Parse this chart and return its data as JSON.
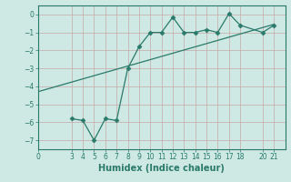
{
  "xlabel": "Humidex (Indice chaleur)",
  "ylabel": "",
  "background_color": "#cee8e4",
  "line_color": "#2a7a6a",
  "grid_color": "#c8a8a8",
  "xlim": [
    0,
    22
  ],
  "ylim": [
    -7.5,
    0.5
  ],
  "xticks": [
    0,
    3,
    4,
    5,
    6,
    7,
    8,
    9,
    10,
    11,
    12,
    13,
    14,
    15,
    16,
    17,
    18,
    20,
    21
  ],
  "yticks": [
    0,
    -1,
    -2,
    -3,
    -4,
    -5,
    -6,
    -7
  ],
  "curve1_x": [
    3,
    4,
    5,
    6,
    7,
    8,
    9,
    10,
    11,
    12,
    13,
    14,
    15,
    16,
    17,
    18,
    20,
    21
  ],
  "curve1_y": [
    -5.8,
    -5.9,
    -7.0,
    -5.8,
    -5.9,
    -3.0,
    -1.8,
    -1.0,
    -1.0,
    -0.15,
    -1.0,
    -1.0,
    -0.85,
    -1.0,
    0.05,
    -0.6,
    -1.0,
    -0.6
  ],
  "curve2_x": [
    0,
    21
  ],
  "curve2_y": [
    -4.3,
    -0.55
  ],
  "tick_fontsize": 5.5,
  "xlabel_fontsize": 7
}
